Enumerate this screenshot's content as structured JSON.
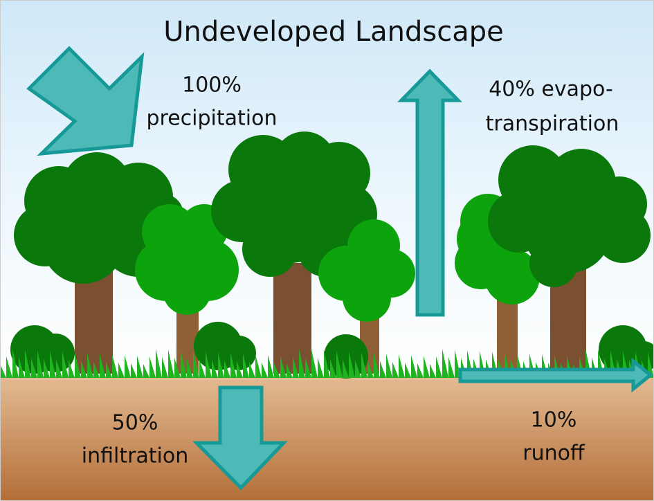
{
  "title": "Undeveloped Landscape",
  "flows": [
    {
      "lines": [
        "100%",
        "precipitation"
      ]
    },
    {
      "lines": [
        "40% evapo-",
        "transpiration"
      ]
    },
    {
      "lines": [
        "50%",
        "infiltration"
      ]
    },
    {
      "lines": [
        "10%",
        "runoff"
      ]
    }
  ]
}
